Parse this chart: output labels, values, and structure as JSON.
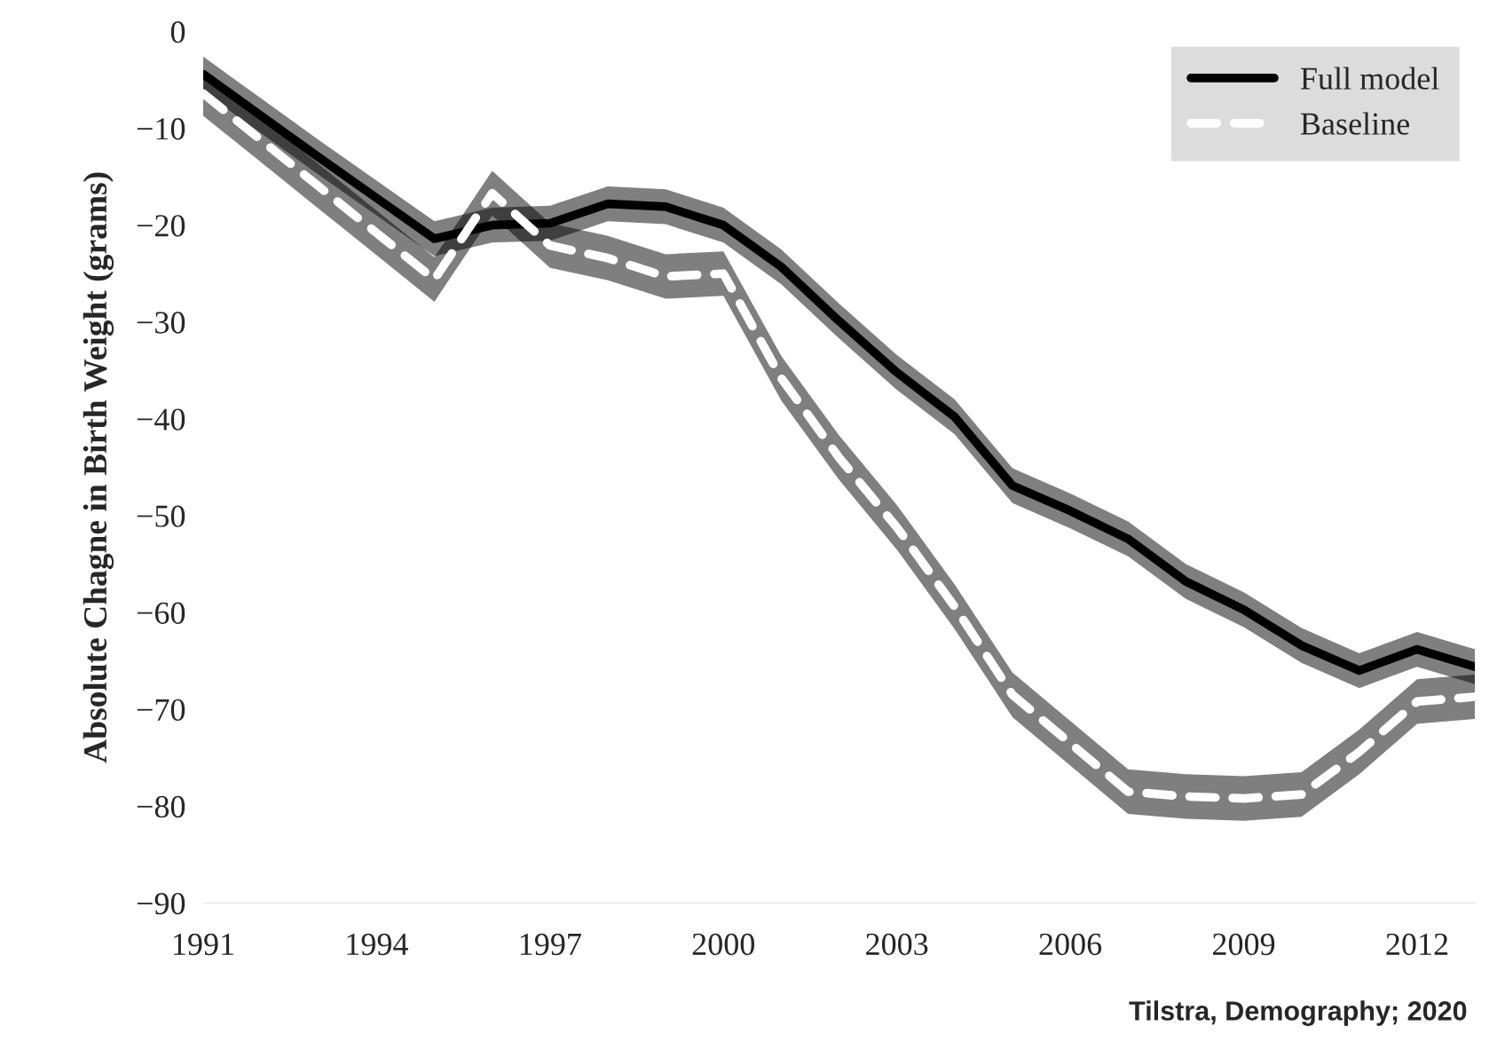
{
  "chart_data": {
    "type": "line",
    "ylabel": "Absolute Chagne in Birth Weight (grams)",
    "x": [
      1991,
      1992,
      1993,
      1994,
      1995,
      1996,
      1997,
      1998,
      1999,
      2000,
      2001,
      2002,
      2003,
      2004,
      2005,
      2006,
      2007,
      2008,
      2009,
      2010,
      2011,
      2012,
      2013
    ],
    "series": [
      {
        "name": "Full model",
        "color": "#000000",
        "line_style": "solid",
        "values": [
          -4.4,
          -8.7,
          -13,
          -17.2,
          -21.4,
          -20,
          -19.8,
          -17.8,
          -18.1,
          -20,
          -24.3,
          -29.9,
          -35.2,
          -39.8,
          -46.9,
          -49.5,
          -52.4,
          -56.8,
          -59.7,
          -63.4,
          -66,
          -63.8,
          -65.6
        ],
        "lower": [
          -6.2,
          -10.5,
          -14.8,
          -19,
          -23.2,
          -21.8,
          -21.6,
          -19.6,
          -19.9,
          -21.8,
          -26.1,
          -31.7,
          -37,
          -41.6,
          -48.7,
          -51.3,
          -54.2,
          -58.6,
          -61.5,
          -65.2,
          -67.8,
          -65.6,
          -67.4
        ],
        "upper": [
          -2.6,
          -6.9,
          -11.2,
          -15.4,
          -19.6,
          -18.2,
          -18,
          -16,
          -16.3,
          -18.2,
          -22.5,
          -28.1,
          -33.4,
          -38,
          -45.1,
          -47.7,
          -50.6,
          -55,
          -57.9,
          -61.6,
          -64.2,
          -62,
          -63.8
        ]
      },
      {
        "name": "Baseline",
        "color": "#ffffff",
        "line_style": "dashed",
        "values": [
          -6.4,
          -11.2,
          -16,
          -20.8,
          -25.6,
          -16.7,
          -22.1,
          -23.4,
          -25.3,
          -25,
          -35.8,
          -44,
          -51.2,
          -59.4,
          -68.5,
          -73.5,
          -78.5,
          -79,
          -79.2,
          -78.8,
          -74.4,
          -69.2,
          -68.7
        ],
        "lower": [
          -8.7,
          -13.5,
          -18.3,
          -23.1,
          -27.9,
          -19,
          -24.4,
          -25.7,
          -27.6,
          -27.3,
          -38.1,
          -46.3,
          -53.5,
          -61.7,
          -70.8,
          -75.8,
          -80.8,
          -81.3,
          -81.5,
          -81.1,
          -76.7,
          -71.5,
          -71
        ],
        "upper": [
          -4.1,
          -8.9,
          -13.7,
          -18.5,
          -23.3,
          -14.4,
          -19.8,
          -21.1,
          -23,
          -22.7,
          -33.5,
          -41.7,
          -48.9,
          -57.1,
          -66.2,
          -71.2,
          -76.2,
          -76.7,
          -76.9,
          -76.5,
          -72.1,
          -66.9,
          -66.4
        ]
      }
    ],
    "xlim": [
      1991,
      2013
    ],
    "xticks": [
      1991,
      1994,
      1997,
      2000,
      2003,
      2006,
      2009,
      2012
    ],
    "ylim": [
      -90,
      0
    ],
    "yticks": [
      0,
      {
        "value": -10,
        "label": "−10"
      },
      {
        "value": -20,
        "label": "−20"
      },
      {
        "value": -30,
        "label": "−30"
      },
      {
        "value": -40,
        "label": "−40"
      },
      {
        "value": -50,
        "label": "−50"
      },
      {
        "value": -60,
        "label": "−60"
      },
      {
        "value": -70,
        "label": "−70"
      },
      {
        "value": -80,
        "label": "−80"
      },
      {
        "value": -90,
        "label": "−90"
      }
    ],
    "grid": false,
    "legend": "top right",
    "marker": "none",
    "annotations": [
      "Tilstra, Demography; 2020"
    ]
  }
}
